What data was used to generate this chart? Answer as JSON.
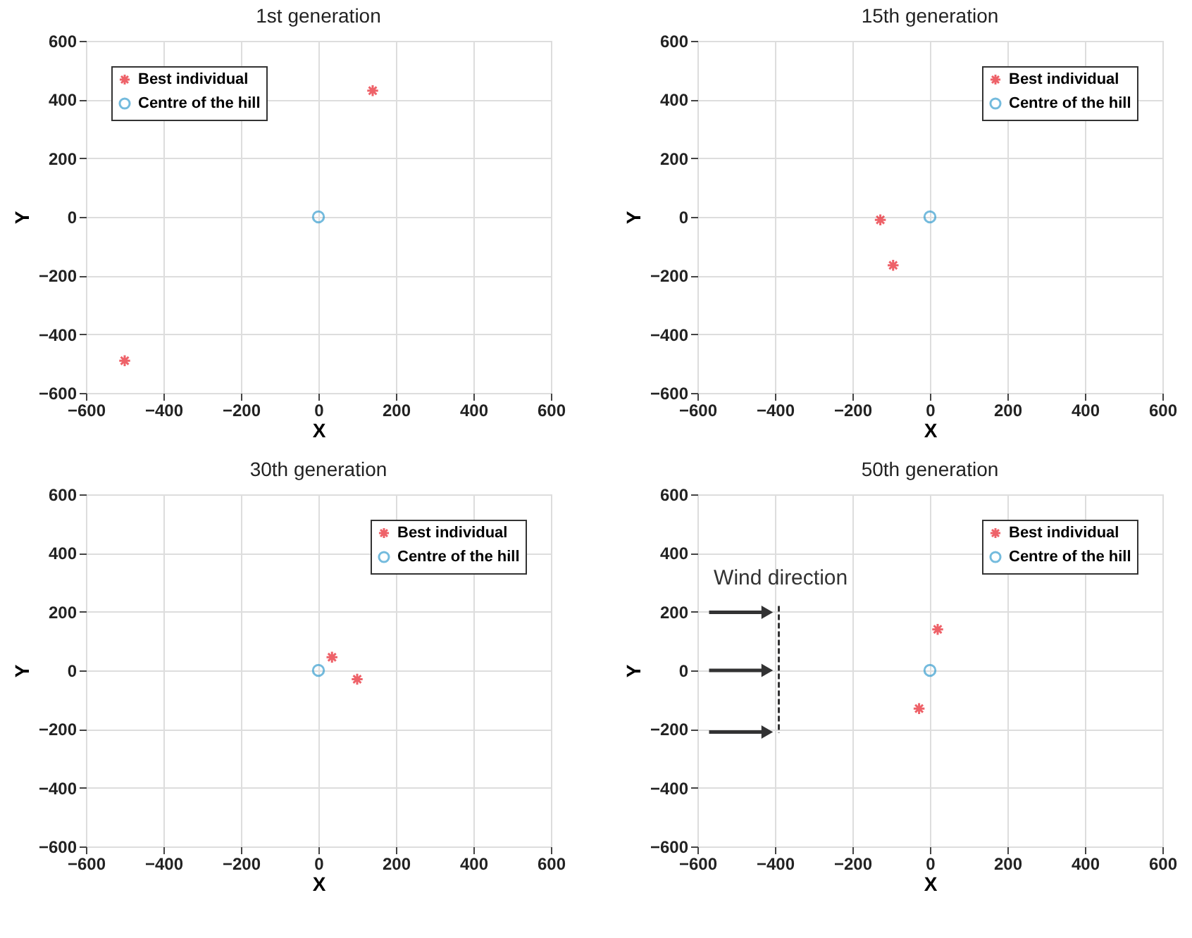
{
  "chart_data": [
    {
      "type": "scatter",
      "title": "1st generation",
      "xlabel": "X",
      "ylabel": "Y",
      "xlim": [
        -600,
        600
      ],
      "ylim": [
        -600,
        600
      ],
      "xticks": [
        -600,
        -400,
        -200,
        0,
        200,
        400,
        600
      ],
      "yticks": [
        -600,
        -400,
        -200,
        0,
        200,
        400,
        600
      ],
      "grid": true,
      "legend": "top left",
      "series": [
        {
          "name": "Best individual",
          "color": "#e8202a",
          "marker": "cross",
          "x": [
            -500,
            140
          ],
          "values": [
            -490,
            430
          ]
        },
        {
          "name": "Centre of the hill",
          "color": "#3a9fd0",
          "marker": "circle",
          "x": [
            0
          ],
          "values": [
            0
          ]
        }
      ]
    },
    {
      "type": "scatter",
      "title": "15th generation",
      "xlabel": "X",
      "ylabel": "Y",
      "xlim": [
        -600,
        600
      ],
      "ylim": [
        -600,
        600
      ],
      "xticks": [
        -600,
        -400,
        -200,
        0,
        200,
        400,
        600
      ],
      "yticks": [
        -600,
        -400,
        -200,
        0,
        200,
        400,
        600
      ],
      "grid": true,
      "legend": "top right",
      "series": [
        {
          "name": "Best individual",
          "color": "#e8202a",
          "marker": "cross",
          "x": [
            -128,
            -95
          ],
          "values": [
            -10,
            -165
          ]
        },
        {
          "name": "Centre of the hill",
          "color": "#3a9fd0",
          "marker": "circle",
          "x": [
            0
          ],
          "values": [
            0
          ]
        }
      ]
    },
    {
      "type": "scatter",
      "title": "30th generation",
      "xlabel": "X",
      "ylabel": "Y",
      "xlim": [
        -600,
        600
      ],
      "ylim": [
        -600,
        600
      ],
      "xticks": [
        -600,
        -400,
        -200,
        0,
        200,
        400,
        600
      ],
      "yticks": [
        -600,
        -400,
        -200,
        0,
        200,
        400,
        600
      ],
      "grid": true,
      "legend": "top right",
      "series": [
        {
          "name": "Best individual",
          "color": "#e8202a",
          "marker": "cross",
          "x": [
            35,
            100
          ],
          "values": [
            45,
            -30
          ]
        },
        {
          "name": "Centre of the hill",
          "color": "#3a9fd0",
          "marker": "circle",
          "x": [
            0
          ],
          "values": [
            0
          ]
        }
      ]
    },
    {
      "type": "scatter",
      "title": "50th generation",
      "xlabel": "X",
      "ylabel": "Y",
      "xlim": [
        -600,
        600
      ],
      "ylim": [
        -600,
        600
      ],
      "xticks": [
        -600,
        -400,
        -200,
        0,
        200,
        400,
        600
      ],
      "yticks": [
        -600,
        -400,
        -200,
        0,
        200,
        400,
        600
      ],
      "grid": true,
      "legend": "top right",
      "annotations": [
        "Wind direction"
      ],
      "series": [
        {
          "name": "Best individual",
          "color": "#e8202a",
          "marker": "cross",
          "x": [
            20,
            -28
          ],
          "values": [
            140,
            -130
          ]
        },
        {
          "name": "Centre of the hill",
          "color": "#3a9fd0",
          "marker": "circle",
          "x": [
            0
          ],
          "values": [
            0
          ]
        }
      ]
    }
  ]
}
